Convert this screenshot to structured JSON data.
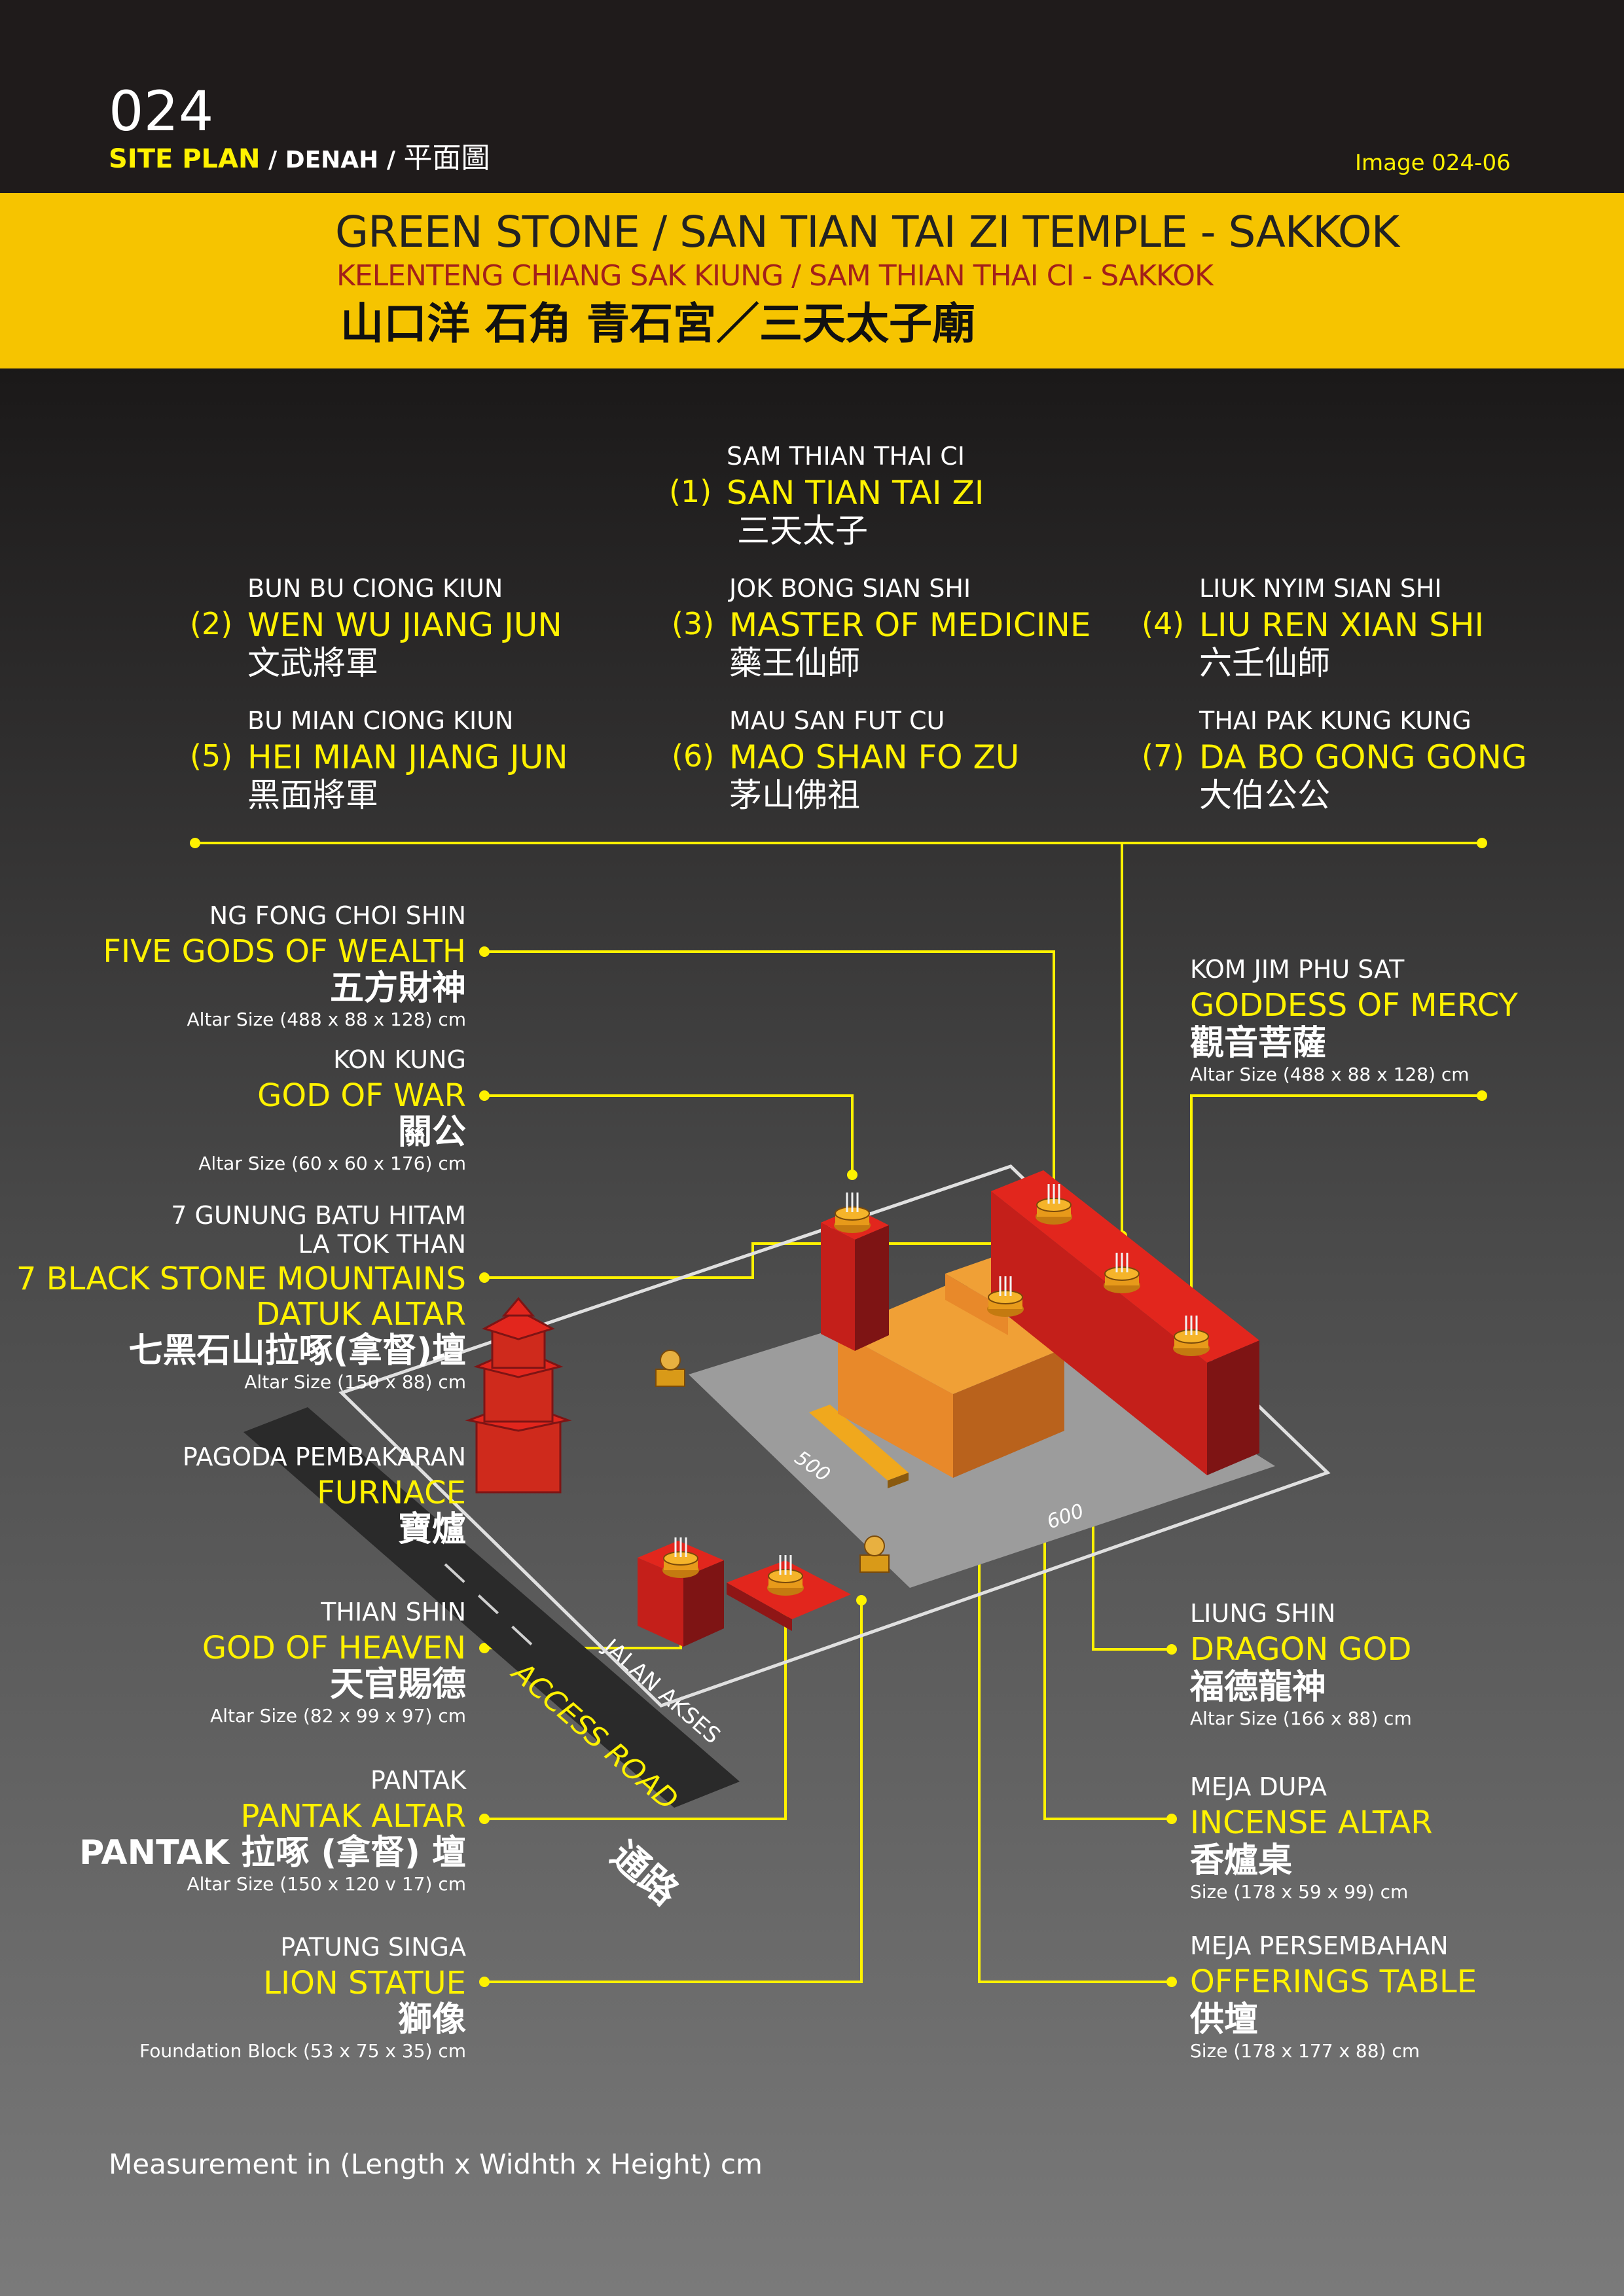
{
  "header": {
    "number": "024",
    "section_en": "SITE PLAN",
    "sep1": " / ",
    "section_ms": "DENAH",
    "sep2": " / ",
    "section_zh": "平面圖",
    "image_id": "Image 024-06"
  },
  "title": {
    "en": "GREEN STONE / SAN TIAN TAI ZI TEMPLE - SAKKOK",
    "ms": "KELENTENG CHIANG SAK KIUNG / SAM THIAN THAI CI - SAKKOK",
    "zh": "山口洋 石角 青石宮／三天太子廟"
  },
  "deities": [
    {
      "num": "(1)",
      "dialect": "SAM THIAN THAI CI",
      "en": "SAN TIAN TAI ZI",
      "zh": "三天太子"
    },
    {
      "num": "(2)",
      "dialect": "BUN BU CIONG KIUN",
      "en": "WEN WU JIANG JUN",
      "zh": "文武將軍"
    },
    {
      "num": "(3)",
      "dialect": "JOK BONG SIAN SHI",
      "en": "MASTER OF MEDICINE",
      "zh": "藥王仙師"
    },
    {
      "num": "(4)",
      "dialect": "LIUK NYIM SIAN SHI",
      "en": "LIU REN XIAN SHI",
      "zh": "六壬仙師"
    },
    {
      "num": "(5)",
      "dialect": "BU MIAN CIONG KIUN",
      "en": "HEI MIAN JIANG JUN",
      "zh": "黑面將軍"
    },
    {
      "num": "(6)",
      "dialect": "MAU SAN FUT CU",
      "en": "MAO SHAN FO ZU",
      "zh": "茅山佛祖"
    },
    {
      "num": "(7)",
      "dialect": "THAI PAK KUNG KUNG",
      "en": "DA BO GONG GONG",
      "zh": "大伯公公"
    }
  ],
  "left_labels": [
    {
      "dialect": "NG FONG CHOI SHIN",
      "en": "FIVE GODS OF WEALTH",
      "zh": "五方財神",
      "size": "Altar Size (488 x 88 x 128) cm"
    },
    {
      "dialect": "KON KUNG",
      "en": "GOD OF WAR",
      "zh": "關公",
      "size": "Altar Size (60 x 60 x 176) cm"
    },
    {
      "dialect": "7 GUNUNG BATU HITAM",
      "dialect2": "LA TOK THAN",
      "en": "7 BLACK STONE MOUNTAINS",
      "en2": "DATUK ALTAR",
      "zh": "七黑石山拉啄(拿督)壇",
      "size": "Altar Size (150 x 88) cm"
    },
    {
      "dialect": "PAGODA PEMBAKARAN",
      "en": "FURNACE",
      "zh": "寶爐",
      "size": ""
    },
    {
      "dialect": "THIAN SHIN",
      "en": "GOD OF HEAVEN",
      "zh": "天官賜德",
      "size": "Altar Size (82 x 99 x 97) cm"
    },
    {
      "dialect": "PANTAK",
      "en": "PANTAK ALTAR",
      "zh": "PANTAK 拉啄 (拿督) 壇",
      "size": "Altar Size (150 x 120 v 17) cm"
    },
    {
      "dialect": "PATUNG SINGA",
      "en": "LION STATUE",
      "zh": "獅像",
      "size": "Foundation Block (53 x 75 x 35) cm"
    }
  ],
  "right_labels": [
    {
      "dialect": "KOM JIM PHU SAT",
      "en": "GODDESS OF MERCY",
      "zh": "觀音菩薩",
      "size": "Altar Size (488 x 88 x 128) cm"
    },
    {
      "dialect": "LIUNG SHIN",
      "en": "DRAGON GOD",
      "zh": "福德龍神",
      "size": "Altar Size (166 x 88) cm"
    },
    {
      "dialect": "MEJA DUPA",
      "en": "INCENSE ALTAR",
      "zh": "香爐桌",
      "size": "Size (178 x 59 x 99) cm"
    },
    {
      "dialect": "MEJA PERSEMBAHAN",
      "en": "OFFERINGS TABLE",
      "zh": "供壇",
      "size": "Size (178 x 177 x 88) cm"
    }
  ],
  "plan": {
    "dim_short": "500",
    "dim_long": "600",
    "road_ms": "JALAN AKSES",
    "road_en": "ACCESS ROAD",
    "road_zh": "通路"
  },
  "footer": {
    "note": "Measurement in (Length x Widhth x Height) cm"
  },
  "colors": {
    "header_bg": "#1f1b1b",
    "band": "#f6c400",
    "accent_yellow": "#fff200",
    "title_red": "#a3201a",
    "altar_red": "#d8231d",
    "temple_orange": "#e8892a"
  }
}
